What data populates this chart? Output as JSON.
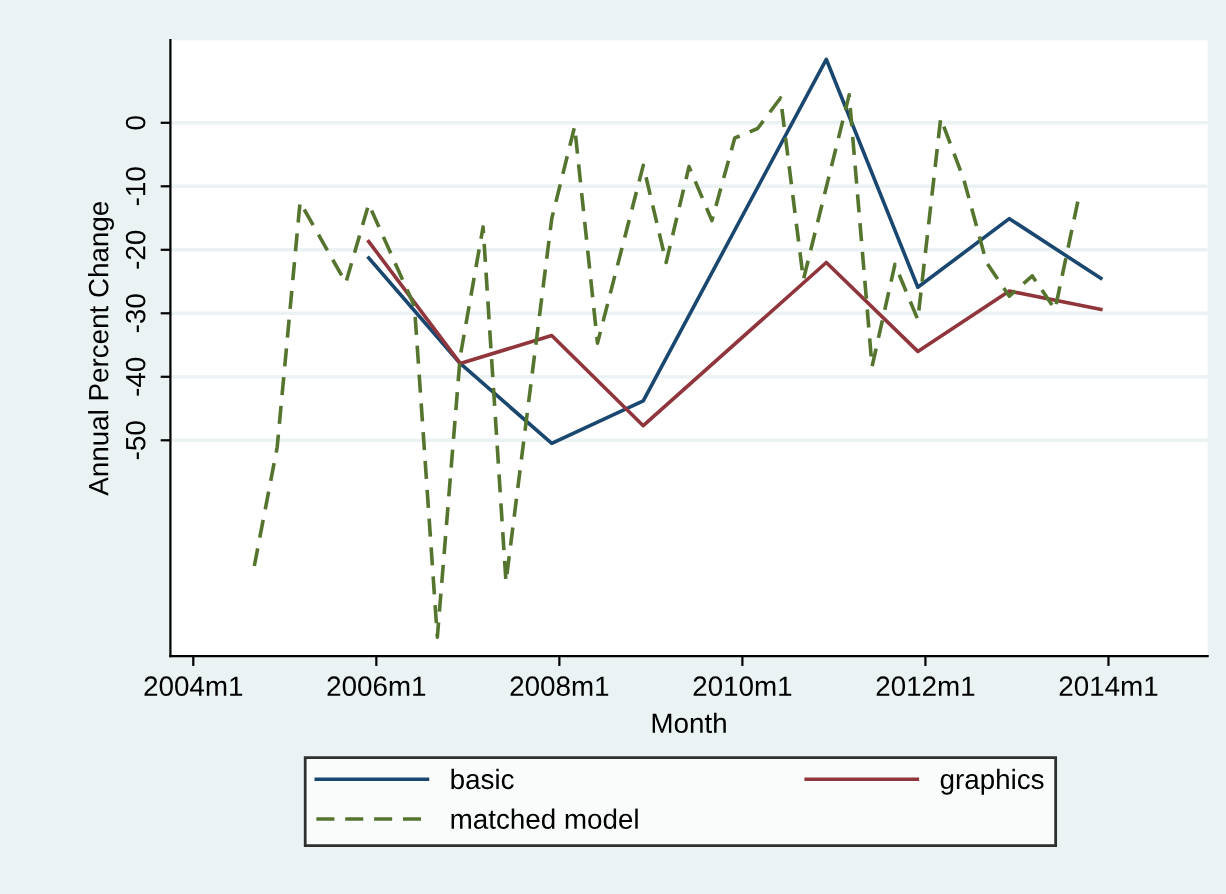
{
  "chart_data": {
    "type": "line",
    "xlabel": "Month",
    "ylabel": "Annual Percent Change",
    "xlim": [
      "2003-10",
      "2015-02"
    ],
    "xticks": [
      {
        "value": "2004-01",
        "label": "2004m1"
      },
      {
        "value": "2006-01",
        "label": "2006m1"
      },
      {
        "value": "2008-01",
        "label": "2008m1"
      },
      {
        "value": "2010-01",
        "label": "2010m1"
      },
      {
        "value": "2012-01",
        "label": "2012m1"
      },
      {
        "value": "2014-01",
        "label": "2014m1"
      }
    ],
    "ylim": [
      -84,
      13
    ],
    "yticks": [
      0,
      -10,
      -20,
      -30,
      -40,
      -50
    ],
    "grid": "y",
    "legend": "bottom",
    "marker": "none",
    "series": [
      {
        "name": "basic",
        "color": "#1a476f",
        "line_style": "solid",
        "x": [
          "2005-12",
          "2006-12",
          "2007-12",
          "2008-12",
          "2010-12",
          "2011-12",
          "2012-12",
          "2013-12"
        ],
        "values": [
          -21.3,
          -37.9,
          -50.5,
          -43.8,
          10.0,
          -25.9,
          -15.1,
          -24.5
        ]
      },
      {
        "name": "graphics",
        "color": "#90353b",
        "line_style": "solid",
        "x": [
          "2005-12",
          "2006-12",
          "2007-12",
          "2008-12",
          "2010-12",
          "2011-12",
          "2012-12",
          "2013-12"
        ],
        "values": [
          -18.7,
          -37.9,
          -33.5,
          -47.7,
          -22.0,
          -36.0,
          -26.5,
          -29.4
        ]
      },
      {
        "name": "matched model",
        "color": "#55752f",
        "line_style": "dashed",
        "x": [
          "2004-09",
          "2004-12",
          "2005-03",
          "2005-09",
          "2005-12",
          "2006-06",
          "2006-09",
          "2006-12",
          "2007-03",
          "2007-06",
          "2007-12",
          "2008-03",
          "2008-06",
          "2008-12",
          "2009-03",
          "2009-06",
          "2009-09",
          "2009-12",
          "2010-03",
          "2010-06",
          "2010-09",
          "2011-03",
          "2011-06",
          "2011-09",
          "2011-12",
          "2012-03",
          "2012-06",
          "2012-09",
          "2012-12",
          "2013-03",
          "2013-06",
          "2013-09"
        ],
        "values": [
          -69.8,
          -51.1,
          -12.5,
          -25.2,
          -12.8,
          -28.9,
          -81.0,
          -36.8,
          -16.4,
          -72.3,
          -15.1,
          -0.6,
          -34.7,
          -6.7,
          -22.0,
          -6.9,
          -15.4,
          -2.4,
          -0.9,
          3.9,
          -24.7,
          4.4,
          -38.4,
          -22.3,
          -31.0,
          0.7,
          -8.8,
          -22.0,
          -27.3,
          -24.1,
          -29.4,
          -12.3
        ]
      }
    ]
  }
}
